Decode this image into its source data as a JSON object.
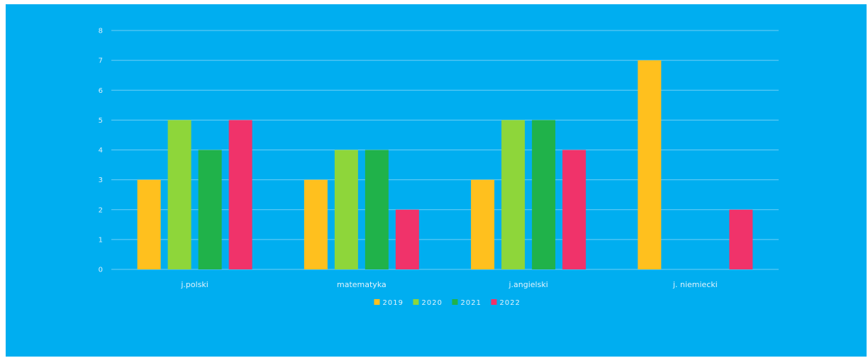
{
  "chart_data": {
    "type": "bar",
    "categories": [
      "j.polski",
      "matematyka",
      "j.angielski",
      "j. niemiecki"
    ],
    "series": [
      {
        "name": "2019",
        "values": [
          3,
          3,
          3,
          7
        ],
        "color": "#ffc01e"
      },
      {
        "name": "2020",
        "values": [
          5,
          4,
          5,
          0
        ],
        "color": "#8ed63a"
      },
      {
        "name": "2021",
        "values": [
          4,
          4,
          5,
          0
        ],
        "color": "#20b24a"
      },
      {
        "name": "2022",
        "values": [
          5,
          2,
          4,
          2
        ],
        "color": "#f0336a"
      }
    ],
    "y_ticks": [
      "0",
      "1",
      "2",
      "3",
      "4",
      "5",
      "6",
      "7",
      "8"
    ],
    "ylim": [
      0,
      8
    ],
    "grid": true,
    "legend_position": "bottom-center"
  },
  "colors": {
    "background": "#00aef0",
    "gridline": "#6fcff5",
    "text": "#e3f3fc"
  }
}
